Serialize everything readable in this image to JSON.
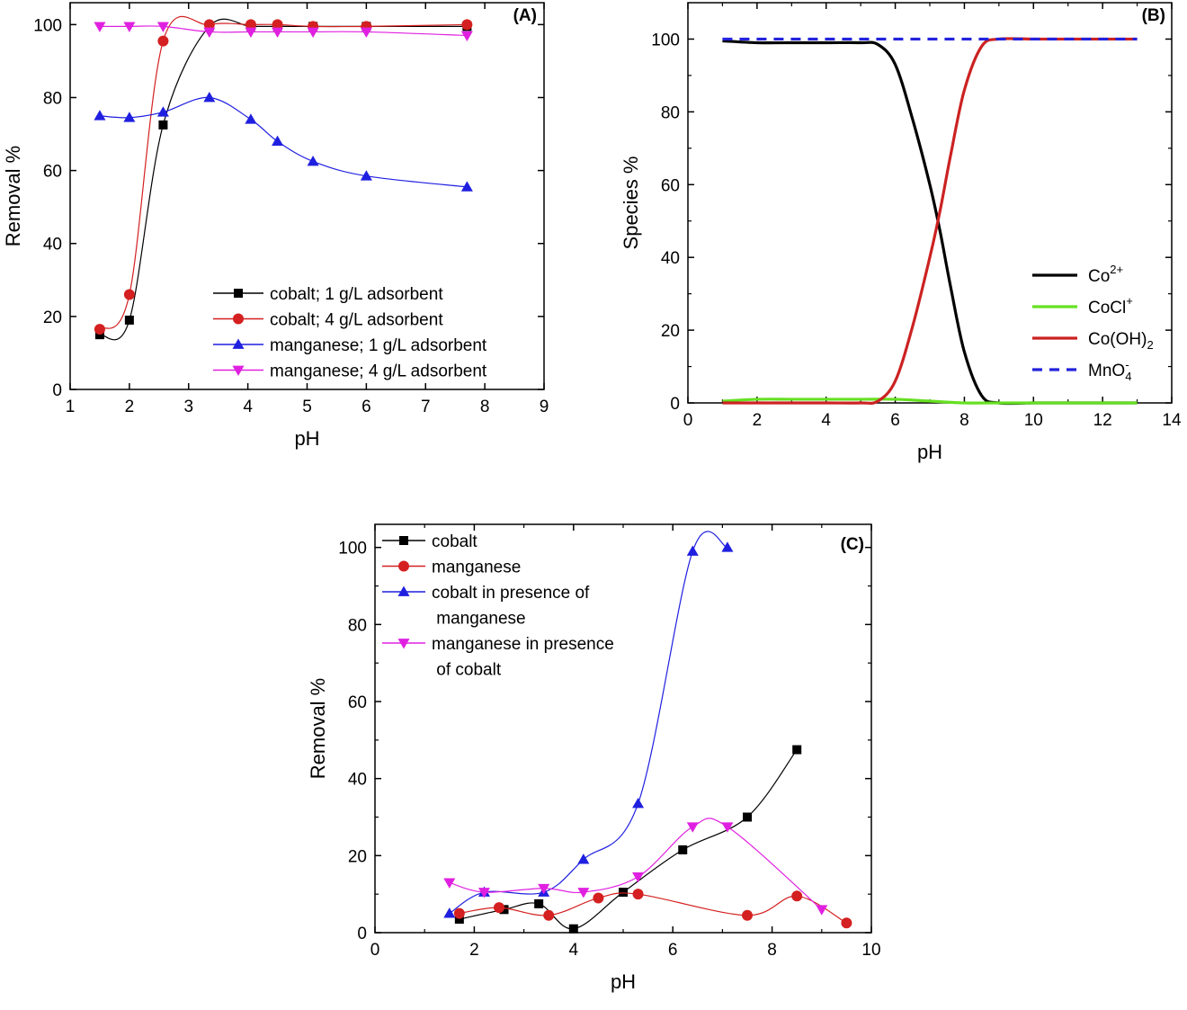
{
  "chart_data": [
    {
      "type": "line",
      "panel_label": "(A)",
      "xlabel": "pH",
      "ylabel": "Removal %",
      "xlim": [
        1,
        9
      ],
      "ylim": [
        0,
        106
      ],
      "xticks": [
        1,
        2,
        3,
        4,
        5,
        6,
        7,
        8,
        9
      ],
      "yticks": [
        0,
        20,
        40,
        60,
        80,
        100
      ],
      "legend_position": "bottom-right",
      "series": [
        {
          "name": "cobalt; 1 g/L adsorbent",
          "color": "#000000",
          "marker": "square",
          "x": [
            1.5,
            2.0,
            2.57,
            3.35,
            4.05,
            4.5,
            5.1,
            6.0,
            7.7
          ],
          "y": [
            15,
            19,
            72.5,
            99.5,
            99.5,
            99.5,
            99.5,
            99.5,
            99.5
          ]
        },
        {
          "name": "cobalt; 4 g/L adsorbent",
          "color": "#d42020",
          "marker": "circle",
          "x": [
            1.5,
            2.0,
            2.57,
            3.35,
            4.05,
            4.5,
            5.1,
            6.0,
            7.7
          ],
          "y": [
            16.5,
            26,
            95.5,
            100,
            100,
            100,
            99.5,
            99.5,
            100
          ]
        },
        {
          "name": "manganese; 1 g/L adsorbent",
          "color": "#1f1fe0",
          "marker": "triangle-up",
          "x": [
            1.5,
            2.0,
            2.57,
            3.35,
            4.05,
            4.5,
            5.1,
            6.0,
            7.7
          ],
          "y": [
            75,
            74.5,
            76,
            80,
            74,
            68,
            62.5,
            58.5,
            55.5
          ]
        },
        {
          "name": "manganese; 4 g/L adsorbent",
          "color": "#e020e0",
          "marker": "triangle-down",
          "x": [
            1.5,
            2.0,
            2.57,
            3.35,
            4.05,
            4.5,
            5.1,
            6.0,
            7.7
          ],
          "y": [
            99.5,
            99.5,
            99.5,
            98,
            98,
            98,
            98,
            98,
            97
          ]
        }
      ]
    },
    {
      "type": "line",
      "panel_label": "(B)",
      "xlabel": "pH",
      "ylabel": "Species %",
      "xlim": [
        0,
        14
      ],
      "ylim": [
        0,
        110
      ],
      "xticks": [
        0,
        2,
        4,
        6,
        8,
        10,
        12,
        14
      ],
      "yticks": [
        0,
        20,
        40,
        60,
        80,
        100
      ],
      "legend_position": "bottom-right",
      "series": [
        {
          "name": "Co",
          "sup": "2+",
          "sub": "",
          "color": "#000000",
          "dash": false,
          "x": [
            1,
            2,
            3,
            4,
            5,
            5.5,
            6,
            6.5,
            7,
            7.3,
            7.6,
            8,
            8.5,
            9,
            10,
            11,
            12,
            13
          ],
          "y": [
            99.5,
            99,
            99,
            99,
            99,
            98.5,
            93,
            78,
            60,
            47,
            32,
            14,
            2,
            0,
            0,
            0,
            0,
            0
          ]
        },
        {
          "name": "CoCl",
          "sup": "+",
          "sub": "",
          "color": "#66e022",
          "dash": false,
          "x": [
            1,
            2,
            3,
            4,
            5,
            6,
            7,
            8,
            9,
            10,
            11,
            12,
            13
          ],
          "y": [
            0.5,
            1,
            1,
            1,
            1,
            1,
            0.5,
            0,
            0,
            0,
            0,
            0,
            0
          ]
        },
        {
          "name": "Co(OH)",
          "sup": "",
          "sub": "2",
          "color": "#cc2222",
          "dash": false,
          "x": [
            1,
            2,
            3,
            4,
            5,
            5.5,
            6,
            6.5,
            7,
            7.3,
            7.6,
            8,
            8.5,
            9,
            10,
            11,
            12,
            13
          ],
          "y": [
            0,
            0,
            0,
            0,
            0,
            0.5,
            6,
            21,
            40,
            53,
            68,
            86,
            98,
            100,
            100,
            100,
            100,
            100
          ]
        },
        {
          "name": "MnO",
          "sup": "-",
          "sub": "4",
          "color": "#2222dd",
          "dash": true,
          "x": [
            1,
            13
          ],
          "y": [
            100,
            100
          ]
        }
      ]
    },
    {
      "type": "line",
      "panel_label": "(C)",
      "xlabel": "pH",
      "ylabel": "Removal %",
      "xlim": [
        0,
        10
      ],
      "ylim": [
        0,
        106
      ],
      "xticks": [
        0,
        2,
        4,
        6,
        8,
        10
      ],
      "yticks": [
        0,
        20,
        40,
        60,
        80,
        100
      ],
      "legend_position": "top-left",
      "series": [
        {
          "name": "cobalt",
          "name_line2": "",
          "color": "#000000",
          "marker": "square",
          "x": [
            1.7,
            2.6,
            3.3,
            4.0,
            5.0,
            6.2,
            7.5,
            8.5
          ],
          "y": [
            3.5,
            6,
            7.5,
            1,
            10.5,
            21.5,
            30,
            47.5
          ]
        },
        {
          "name": "manganese",
          "name_line2": "",
          "color": "#d42020",
          "marker": "circle",
          "x": [
            1.7,
            2.5,
            3.5,
            4.5,
            5.3,
            7.5,
            8.5,
            9.5
          ],
          "y": [
            5,
            6.5,
            4.5,
            9,
            10,
            4.5,
            9.5,
            2.5
          ]
        },
        {
          "name": "cobalt in presence of",
          "name_line2": " manganese",
          "color": "#1f1fe0",
          "marker": "triangle-up",
          "x": [
            1.5,
            2.2,
            3.4,
            4.2,
            5.3,
            6.4,
            7.1
          ],
          "y": [
            5,
            10.5,
            10.5,
            19,
            33.5,
            99,
            100
          ]
        },
        {
          "name": "manganese in presence",
          "name_line2": " of cobalt",
          "color": "#e020e0",
          "marker": "triangle-down",
          "x": [
            1.5,
            2.2,
            3.4,
            4.2,
            5.3,
            6.4,
            7.1,
            9.0
          ],
          "y": [
            13,
            10.5,
            11.5,
            10.5,
            14.5,
            27.5,
            27.5,
            6
          ]
        }
      ]
    }
  ]
}
